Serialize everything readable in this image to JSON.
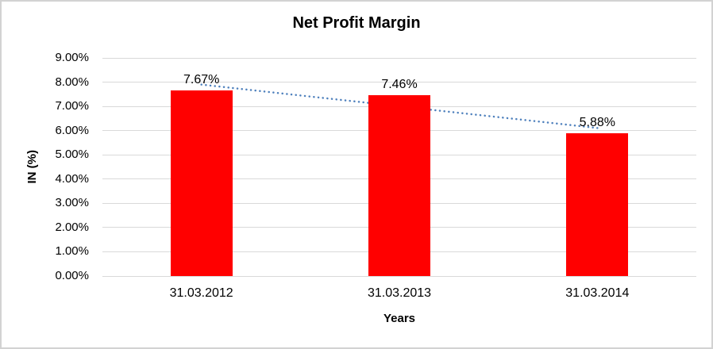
{
  "window": {
    "background": "#ffffff",
    "border_color": "#d2d2d2"
  },
  "chart_data": {
    "type": "bar",
    "title": "Net Profit Margin",
    "xlabel": "Years",
    "ylabel": "IN (%)",
    "categories": [
      "31.03.2012",
      "31.03.2013",
      "31.03.2014"
    ],
    "values": [
      7.67,
      7.46,
      5.88
    ],
    "data_labels": [
      "7.67%",
      "7.46%",
      "5.88%"
    ],
    "y_ticks": [
      "9.00%",
      "8.00%",
      "7.00%",
      "6.00%",
      "5.00%",
      "4.00%",
      "3.00%",
      "2.00%",
      "1.00%",
      "0.00%"
    ],
    "ylim": [
      0,
      9
    ],
    "grid": true,
    "legend": "none",
    "colors": {
      "bar": "#ff0000",
      "gridline": "#d9d9d9",
      "text": "#000000",
      "trendline": "#4f81bd"
    },
    "trendline": {
      "type": "linear",
      "style": "dotted"
    }
  }
}
